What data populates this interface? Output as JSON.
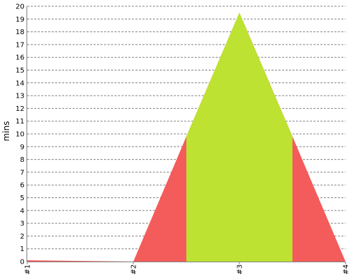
{
  "chart_data": {
    "type": "area",
    "ylabel": "mins",
    "categories": [
      "#1",
      "#2",
      "#3",
      "#4"
    ],
    "ylim": [
      0,
      20
    ],
    "y_ticks": [
      "0",
      "1",
      "2",
      "3",
      "4",
      "5",
      "6",
      "7",
      "8",
      "9",
      "10",
      "11",
      "12",
      "13",
      "14",
      "15",
      "16",
      "17",
      "18",
      "19",
      "20"
    ],
    "grid": true,
    "legend": "none",
    "series": [
      {
        "color": "#f45b5b",
        "points": [
          {
            "x": 0,
            "y": 0.1
          },
          {
            "x": 1,
            "y": 0
          },
          {
            "x": 1.5,
            "y": 9.8
          },
          {
            "x": 2,
            "y": 19.5
          },
          {
            "x": 2.5,
            "y": 9.8
          },
          {
            "x": 3,
            "y": 0
          }
        ]
      },
      {
        "color": "#bde232",
        "x_range": [
          1.5,
          2.5
        ],
        "points": [
          {
            "x": 1.5,
            "y": 9.8
          },
          {
            "x": 2,
            "y": 19.5
          },
          {
            "x": 2.5,
            "y": 9.8
          }
        ]
      }
    ]
  }
}
